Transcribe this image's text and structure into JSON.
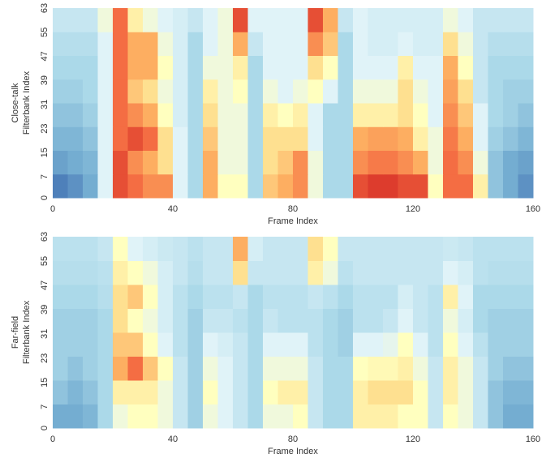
{
  "chart_data": [
    {
      "type": "heatmap",
      "ylabel": [
        "Close-talk",
        "Filterbank Index"
      ],
      "xlabel": "Frame Index",
      "xlim": [
        0,
        160
      ],
      "ylim": [
        0,
        63
      ],
      "xticks": [
        0,
        40,
        80,
        120,
        160
      ],
      "yticks": [
        0,
        7,
        15,
        23,
        31,
        39,
        47,
        55,
        63
      ],
      "clim": [
        0,
        1
      ],
      "colors": [
        "#313695",
        "#4575b4",
        "#74add1",
        "#abd9e9",
        "#e0f3f8",
        "#ffffbf",
        "#fee090",
        "#fdae61",
        "#f46d43",
        "#d73027",
        "#a50026"
      ],
      "values": [
        [
          0.12,
          0.15,
          0.2,
          0.4,
          0.85,
          0.8,
          0.75,
          0.75,
          0.4,
          0.3,
          0.7,
          0.5,
          0.5,
          0.3,
          0.65,
          0.7,
          0.75,
          0.45,
          0.3,
          0.3,
          0.85,
          0.88,
          0.88,
          0.85,
          0.85,
          0.5,
          0.8,
          0.8,
          0.55,
          0.25,
          0.2,
          0.15
        ],
        [
          0.18,
          0.2,
          0.22,
          0.4,
          0.85,
          0.75,
          0.7,
          0.6,
          0.4,
          0.3,
          0.7,
          0.45,
          0.45,
          0.3,
          0.6,
          0.65,
          0.75,
          0.45,
          0.3,
          0.3,
          0.75,
          0.78,
          0.78,
          0.75,
          0.7,
          0.45,
          0.8,
          0.75,
          0.45,
          0.25,
          0.2,
          0.18
        ],
        [
          0.22,
          0.22,
          0.25,
          0.4,
          0.8,
          0.85,
          0.8,
          0.6,
          0.4,
          0.3,
          0.65,
          0.45,
          0.45,
          0.3,
          0.6,
          0.6,
          0.6,
          0.4,
          0.3,
          0.3,
          0.7,
          0.72,
          0.72,
          0.7,
          0.55,
          0.45,
          0.78,
          0.7,
          0.4,
          0.28,
          0.25,
          0.22
        ],
        [
          0.25,
          0.25,
          0.28,
          0.4,
          0.8,
          0.75,
          0.7,
          0.5,
          0.38,
          0.3,
          0.6,
          0.45,
          0.45,
          0.3,
          0.55,
          0.5,
          0.55,
          0.4,
          0.3,
          0.3,
          0.55,
          0.55,
          0.55,
          0.6,
          0.5,
          0.4,
          0.75,
          0.65,
          0.4,
          0.3,
          0.28,
          0.25
        ],
        [
          0.28,
          0.28,
          0.3,
          0.4,
          0.8,
          0.65,
          0.6,
          0.45,
          0.38,
          0.3,
          0.55,
          0.45,
          0.5,
          0.3,
          0.45,
          0.4,
          0.45,
          0.5,
          0.4,
          0.3,
          0.45,
          0.45,
          0.45,
          0.6,
          0.45,
          0.4,
          0.72,
          0.6,
          0.35,
          0.3,
          0.28,
          0.28
        ],
        [
          0.3,
          0.3,
          0.3,
          0.4,
          0.8,
          0.7,
          0.7,
          0.5,
          0.38,
          0.3,
          0.45,
          0.45,
          0.55,
          0.3,
          0.4,
          0.4,
          0.4,
          0.6,
          0.5,
          0.3,
          0.4,
          0.4,
          0.4,
          0.55,
          0.4,
          0.4,
          0.7,
          0.5,
          0.35,
          0.3,
          0.3,
          0.3
        ],
        [
          0.32,
          0.32,
          0.32,
          0.4,
          0.8,
          0.7,
          0.7,
          0.45,
          0.38,
          0.3,
          0.4,
          0.45,
          0.7,
          0.35,
          0.4,
          0.4,
          0.4,
          0.75,
          0.65,
          0.3,
          0.4,
          0.38,
          0.38,
          0.4,
          0.38,
          0.38,
          0.6,
          0.45,
          0.35,
          0.32,
          0.32,
          0.32
        ],
        [
          0.35,
          0.35,
          0.35,
          0.45,
          0.8,
          0.55,
          0.45,
          0.4,
          0.38,
          0.35,
          0.4,
          0.45,
          0.85,
          0.4,
          0.4,
          0.4,
          0.4,
          0.85,
          0.7,
          0.35,
          0.4,
          0.38,
          0.38,
          0.38,
          0.38,
          0.38,
          0.45,
          0.4,
          0.35,
          0.35,
          0.35,
          0.35
        ]
      ]
    },
    {
      "type": "heatmap",
      "ylabel": [
        "Far-field",
        "Filterbank Index"
      ],
      "xlabel": "Frame Index",
      "xlim": [
        0,
        160
      ],
      "ylim": [
        0,
        63
      ],
      "xticks": [
        0,
        40,
        80,
        120,
        160
      ],
      "yticks": [
        0,
        7,
        15,
        23,
        31,
        39,
        47,
        55,
        63
      ],
      "clim": [
        0,
        1
      ],
      "colors": [
        "#313695",
        "#4575b4",
        "#74add1",
        "#abd9e9",
        "#e0f3f8",
        "#ffffbf",
        "#fee090",
        "#fdae61",
        "#f46d43",
        "#d73027",
        "#a50026"
      ],
      "values": [
        [
          0.2,
          0.2,
          0.22,
          0.3,
          0.45,
          0.5,
          0.5,
          0.45,
          0.35,
          0.28,
          0.45,
          0.4,
          0.35,
          0.3,
          0.45,
          0.45,
          0.5,
          0.35,
          0.3,
          0.3,
          0.55,
          0.55,
          0.55,
          0.5,
          0.5,
          0.35,
          0.5,
          0.45,
          0.35,
          0.25,
          0.2,
          0.2
        ],
        [
          0.25,
          0.22,
          0.25,
          0.3,
          0.55,
          0.55,
          0.55,
          0.45,
          0.35,
          0.28,
          0.5,
          0.4,
          0.35,
          0.3,
          0.5,
          0.55,
          0.55,
          0.35,
          0.3,
          0.3,
          0.55,
          0.6,
          0.6,
          0.6,
          0.5,
          0.35,
          0.55,
          0.45,
          0.35,
          0.25,
          0.22,
          0.22
        ],
        [
          0.28,
          0.25,
          0.28,
          0.3,
          0.7,
          0.8,
          0.65,
          0.5,
          0.35,
          0.28,
          0.45,
          0.4,
          0.35,
          0.3,
          0.45,
          0.45,
          0.45,
          0.35,
          0.3,
          0.3,
          0.5,
          0.52,
          0.52,
          0.55,
          0.45,
          0.35,
          0.55,
          0.45,
          0.35,
          0.28,
          0.25,
          0.25
        ],
        [
          0.28,
          0.28,
          0.28,
          0.3,
          0.65,
          0.65,
          0.5,
          0.4,
          0.33,
          0.28,
          0.4,
          0.38,
          0.35,
          0.3,
          0.4,
          0.4,
          0.4,
          0.33,
          0.3,
          0.28,
          0.4,
          0.4,
          0.42,
          0.5,
          0.4,
          0.33,
          0.5,
          0.4,
          0.33,
          0.28,
          0.28,
          0.28
        ],
        [
          0.28,
          0.28,
          0.28,
          0.3,
          0.6,
          0.5,
          0.45,
          0.38,
          0.33,
          0.28,
          0.35,
          0.35,
          0.33,
          0.3,
          0.35,
          0.33,
          0.33,
          0.33,
          0.3,
          0.28,
          0.33,
          0.33,
          0.35,
          0.4,
          0.35,
          0.33,
          0.45,
          0.38,
          0.3,
          0.28,
          0.28,
          0.28
        ],
        [
          0.3,
          0.3,
          0.3,
          0.32,
          0.6,
          0.65,
          0.5,
          0.38,
          0.33,
          0.3,
          0.33,
          0.33,
          0.35,
          0.3,
          0.33,
          0.33,
          0.33,
          0.35,
          0.33,
          0.3,
          0.33,
          0.33,
          0.33,
          0.38,
          0.35,
          0.33,
          0.55,
          0.4,
          0.3,
          0.3,
          0.3,
          0.3
        ],
        [
          0.32,
          0.32,
          0.32,
          0.33,
          0.55,
          0.5,
          0.45,
          0.38,
          0.35,
          0.32,
          0.35,
          0.35,
          0.6,
          0.35,
          0.35,
          0.35,
          0.35,
          0.55,
          0.45,
          0.33,
          0.35,
          0.35,
          0.35,
          0.35,
          0.35,
          0.35,
          0.4,
          0.38,
          0.33,
          0.32,
          0.32,
          0.32
        ],
        [
          0.33,
          0.33,
          0.33,
          0.35,
          0.5,
          0.4,
          0.38,
          0.36,
          0.35,
          0.33,
          0.35,
          0.35,
          0.7,
          0.38,
          0.35,
          0.35,
          0.35,
          0.6,
          0.5,
          0.35,
          0.35,
          0.35,
          0.35,
          0.35,
          0.35,
          0.35,
          0.36,
          0.35,
          0.33,
          0.33,
          0.33,
          0.33
        ]
      ]
    }
  ]
}
